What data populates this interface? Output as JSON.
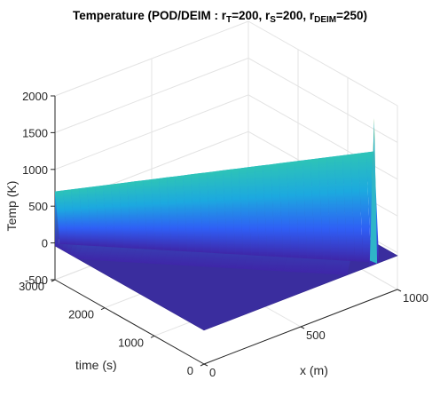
{
  "chart_data": {
    "type": "surface",
    "title_parts": [
      {
        "text": "Temperature (POD/DEIM : r",
        "sub": false
      },
      {
        "text": "T",
        "sub": true
      },
      {
        "text": "=200, r",
        "sub": false
      },
      {
        "text": "S",
        "sub": true
      },
      {
        "text": "=200, r",
        "sub": false
      },
      {
        "text": "DEIM",
        "sub": true
      },
      {
        "text": "=250)",
        "sub": false
      }
    ],
    "xlabel": "x (m)",
    "ylabel": "time (s)",
    "zlabel": "Temp (K)",
    "xlim": [
      0,
      1000
    ],
    "ylim": [
      0,
      3000
    ],
    "zlim": [
      -500,
      2000
    ],
    "xticks": [
      0,
      500,
      1000
    ],
    "yticks": [
      0,
      1000,
      2000,
      3000
    ],
    "zticks": [
      -500,
      0,
      500,
      1000,
      1500,
      2000
    ],
    "grid": true,
    "colormap": [
      "#3e26a8",
      "#2f5ef5",
      "#1ca9df",
      "#2ec4b6",
      "#bbbd34",
      "#f9e21b"
    ],
    "features": [
      {
        "name": "traveling-front",
        "x_start": 0,
        "x_end": 880,
        "t_start": 0,
        "t_end": 3000,
        "peak_temp_start": 1500,
        "peak_temp_end": 700
      },
      {
        "name": "initial-spike",
        "x": 0,
        "t": 0,
        "peak_temp": 1950
      },
      {
        "name": "baseline",
        "temp": -40
      }
    ]
  }
}
